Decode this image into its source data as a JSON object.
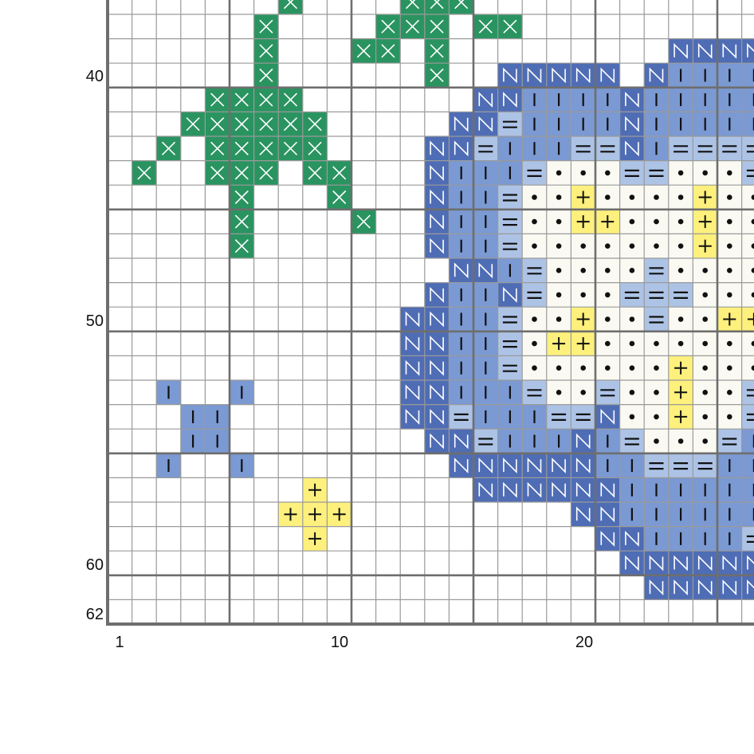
{
  "pattern": {
    "first_row": 37,
    "first_col": 1,
    "symbols": {
      "X": {
        "name": "green-cross",
        "fill": "#2a9461",
        "glyph": "cross",
        "glyph_color": "#ffffff"
      },
      "N": {
        "name": "dark-blue-n",
        "fill": "#4f6db5",
        "glyph": "N",
        "glyph_color": "#ffffff"
      },
      "I": {
        "name": "mid-blue-bar",
        "fill": "#7b99d2",
        "glyph": "I",
        "glyph_color": "#111111"
      },
      "=": {
        "name": "light-blue-equals",
        "fill": "#adc3e6",
        "glyph": "=",
        "glyph_color": "#111111"
      },
      "o": {
        "name": "cream-dot",
        "fill": "#fafaf3",
        "glyph": "dot",
        "glyph_color": "#111111"
      },
      "+": {
        "name": "yellow-plus",
        "fill": "#fdf07c",
        "glyph": "+",
        "glyph_color": "#111111"
      }
    },
    "rows": [
      "-------X----XXX------------",
      "------X----XXX-XX----------",
      "------X---XX-X---------NNNN",
      "------X------X--NNNNN-NIIII",
      "----XXXX-------NNIIIINIIIII",
      "---XXXXXX-----NN=IIIINIIIII",
      "--X-XXXXX----NN=III==NI====",
      "-X--XXX-XX---NIII=ooo==ooo=",
      "-----X---X---NII=oo+oooo+oo",
      "-----X----X--NII=oo++ooo+oo",
      "-----X-------NII=ooooooo+oo",
      "--------------NNI=oooo=oooo",
      "-------------NIIN=ooo===ooo",
      "------------NNII=oo+oo=oo++",
      "------------NNII=o++ooooooo",
      "------------NNII=oooooo+ooo",
      "--I--I------NNIII=oo=oo+oo=",
      "---II-------NN=III==Noo+oo=",
      "---II--------NN=IIINI=ooo=I",
      "--I--I--------NNNNNNII===II",
      "--------+------NNNNNNIIIIII",
      "-------+++---------NNIIIIII",
      "--------+-----------NNIIII=",
      "---------------------NNNNNN",
      "----------------------NNNNN",
      "---------------------------"
    ]
  },
  "axes": {
    "row_labels": [
      {
        "row": 40,
        "text": "40"
      },
      {
        "row": 50,
        "text": "50"
      },
      {
        "row": 60,
        "text": "60"
      },
      {
        "row": 62,
        "text": "62"
      }
    ],
    "col_labels": [
      {
        "col": 1,
        "text": "1"
      },
      {
        "col": 10,
        "text": "10"
      },
      {
        "col": 20,
        "text": "20"
      }
    ]
  },
  "colors": {
    "grid_thin": "#9a9a9a",
    "grid_thick": "#6e6e6e"
  }
}
